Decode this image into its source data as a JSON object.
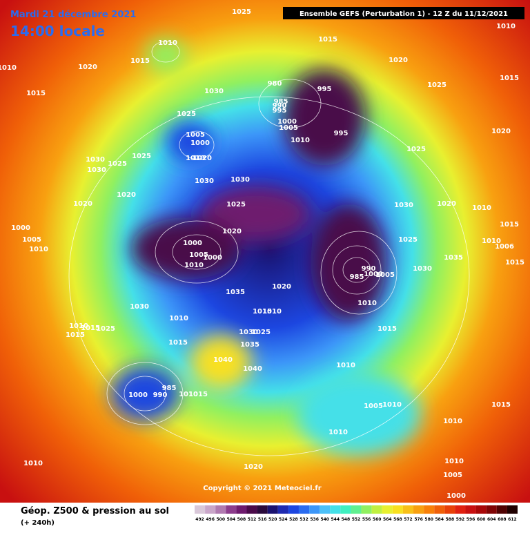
{
  "header": {
    "date": "Mardi 21 décembre 2021",
    "time": "14:00 locale",
    "run": "Ensemble GEFS  (Perturbation 1)  -  12 Z du 11/12/2021"
  },
  "copyright": "Copyright © 2021 Meteociel.fr",
  "legend": {
    "title": "Géop. Z500 & pression au sol",
    "subtitle": "(+ 240h)",
    "labels": [
      492,
      496,
      500,
      504,
      508,
      512,
      516,
      520,
      524,
      528,
      532,
      536,
      540,
      544,
      548,
      552,
      556,
      560,
      564,
      568,
      572,
      576,
      580,
      584,
      588,
      592,
      596,
      600,
      604,
      608,
      612
    ],
    "colors": [
      "#d9c8d9",
      "#c9a6c9",
      "#b07ab0",
      "#8c3c8c",
      "#6e1a6e",
      "#4a0a4a",
      "#2a0a3c",
      "#1a1270",
      "#1e2ab0",
      "#1c46e0",
      "#2a6cf0",
      "#3c96f8",
      "#4cc0f8",
      "#44e0e8",
      "#40f0c0",
      "#60f090",
      "#90f060",
      "#c0f040",
      "#e8f030",
      "#f8e020",
      "#f8c018",
      "#f8a010",
      "#f88008",
      "#f06008",
      "#e84008",
      "#e02010",
      "#c81010",
      "#a80808",
      "#800404",
      "#500202",
      "#200000"
    ]
  },
  "isobar_labels": [
    1025,
    1010,
    1015,
    1010,
    1015,
    1020,
    1010,
    1015,
    1030,
    980,
    995,
    985,
    990,
    995,
    1000,
    1005,
    1010,
    995,
    1020,
    1025,
    1015,
    1020,
    1025,
    1005,
    1000,
    1010,
    1020,
    1025,
    1030,
    1030,
    1025,
    1030,
    1030,
    1025,
    1025,
    1030,
    1020,
    1010,
    1015,
    1010,
    1006,
    1015,
    1035,
    1030,
    1025,
    1020,
    1020,
    1020,
    1000,
    1005,
    1010,
    1000,
    1000,
    1005,
    1010,
    1035,
    1020,
    1015,
    1010,
    1030,
    1010,
    1015,
    1030,
    1025,
    1035,
    1040,
    1040,
    1010,
    1015,
    1015,
    1025,
    985,
    1000,
    990,
    1010,
    1015,
    985,
    990,
    1000,
    1005,
    1010,
    1015,
    1010,
    1005,
    1010,
    1015,
    1010,
    1010,
    1020,
    1010,
    1010,
    1005,
    1000
  ]
}
